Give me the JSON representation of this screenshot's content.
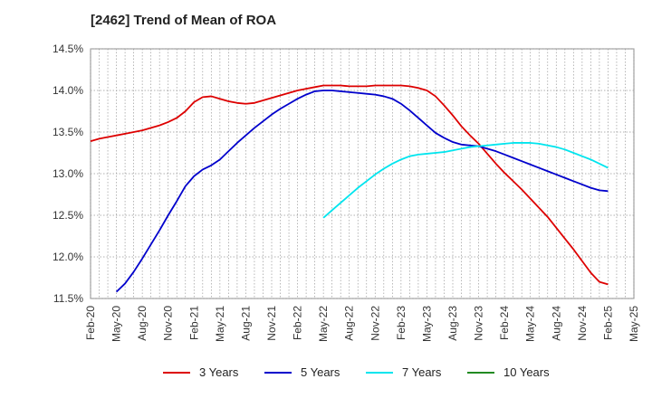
{
  "chart_data": {
    "type": "line",
    "title": "[2462]  Trend of Mean of ROA",
    "xlabel": "",
    "ylabel": "",
    "ylim": [
      11.5,
      14.5
    ],
    "yticks": [
      "11.5%",
      "12.0%",
      "12.5%",
      "13.0%",
      "13.5%",
      "14.0%",
      "14.5%"
    ],
    "xticks": [
      "Feb-20",
      "May-20",
      "Aug-20",
      "Nov-20",
      "Feb-21",
      "May-21",
      "Aug-21",
      "Nov-21",
      "Feb-22",
      "May-22",
      "Aug-22",
      "Nov-22",
      "Feb-23",
      "May-23",
      "Aug-23",
      "Nov-23",
      "Feb-24",
      "May-24",
      "Aug-24",
      "Nov-24",
      "Feb-25",
      "May-25"
    ],
    "grid": true,
    "legend_position": "bottom",
    "series": [
      {
        "name": "3 Years",
        "color": "#dd0000",
        "x": [
          "Feb-20",
          "Mar-20",
          "Apr-20",
          "May-20",
          "Jun-20",
          "Jul-20",
          "Aug-20",
          "Sep-20",
          "Oct-20",
          "Nov-20",
          "Dec-20",
          "Jan-21",
          "Feb-21",
          "Mar-21",
          "Apr-21",
          "May-21",
          "Jun-21",
          "Jul-21",
          "Aug-21",
          "Sep-21",
          "Oct-21",
          "Nov-21",
          "Dec-21",
          "Jan-22",
          "Feb-22",
          "Mar-22",
          "Apr-22",
          "May-22",
          "Jun-22",
          "Jul-22",
          "Aug-22",
          "Sep-22",
          "Oct-22",
          "Nov-22",
          "Dec-22",
          "Jan-23",
          "Feb-23",
          "Mar-23",
          "Apr-23",
          "May-23",
          "Jun-23",
          "Jul-23",
          "Aug-23",
          "Sep-23",
          "Oct-23",
          "Nov-23",
          "Dec-23",
          "Jan-24",
          "Feb-24",
          "Mar-24",
          "Apr-24",
          "May-24",
          "Jun-24",
          "Jul-24",
          "Aug-24",
          "Sep-24",
          "Oct-24",
          "Nov-24",
          "Dec-24",
          "Jan-25",
          "Feb-25"
        ],
        "values": [
          13.39,
          13.42,
          13.44,
          13.46,
          13.48,
          13.5,
          13.52,
          13.55,
          13.58,
          13.62,
          13.67,
          13.75,
          13.86,
          13.92,
          13.93,
          13.9,
          13.87,
          13.85,
          13.84,
          13.85,
          13.88,
          13.91,
          13.94,
          13.97,
          14.0,
          14.02,
          14.04,
          14.06,
          14.06,
          14.06,
          14.05,
          14.05,
          14.05,
          14.06,
          14.06,
          14.06,
          14.06,
          14.05,
          14.03,
          14.0,
          13.93,
          13.82,
          13.7,
          13.57,
          13.46,
          13.36,
          13.24,
          13.12,
          13.01,
          12.91,
          12.81,
          12.7,
          12.59,
          12.48,
          12.35,
          12.22,
          12.09,
          11.95,
          11.81,
          11.7,
          11.67
        ],
        "x_offset_note": ""
      },
      {
        "name": "5 Years",
        "color": "#0000cc",
        "x": [
          "May-20",
          "Jun-20",
          "Jul-20",
          "Aug-20",
          "Sep-20",
          "Oct-20",
          "Nov-20",
          "Dec-20",
          "Jan-21",
          "Feb-21",
          "Mar-21",
          "Apr-21",
          "May-21",
          "Jun-21",
          "Jul-21",
          "Aug-21",
          "Sep-21",
          "Oct-21",
          "Nov-21",
          "Dec-21",
          "Jan-22",
          "Feb-22",
          "Mar-22",
          "Apr-22",
          "May-22",
          "Jun-22",
          "Jul-22",
          "Aug-22",
          "Sep-22",
          "Oct-22",
          "Nov-22",
          "Dec-22",
          "Jan-23",
          "Feb-23",
          "Mar-23",
          "Apr-23",
          "May-23",
          "Jun-23",
          "Jul-23",
          "Aug-23",
          "Sep-23",
          "Oct-23",
          "Nov-23",
          "Dec-23",
          "Jan-24",
          "Feb-24",
          "Mar-24",
          "Apr-24",
          "May-24",
          "Jun-24",
          "Jul-24",
          "Aug-24",
          "Sep-24",
          "Oct-24",
          "Nov-24",
          "Dec-24",
          "Jan-25",
          "Feb-25"
        ],
        "values": [
          11.58,
          11.68,
          11.82,
          11.98,
          12.15,
          12.32,
          12.5,
          12.67,
          12.85,
          12.97,
          13.05,
          13.1,
          13.17,
          13.27,
          13.37,
          13.46,
          13.55,
          13.63,
          13.71,
          13.78,
          13.84,
          13.9,
          13.95,
          13.99,
          14.0,
          14.0,
          13.99,
          13.98,
          13.97,
          13.96,
          13.95,
          13.93,
          13.9,
          13.84,
          13.76,
          13.67,
          13.58,
          13.49,
          13.43,
          13.38,
          13.35,
          13.34,
          13.33,
          13.3,
          13.27,
          13.23,
          13.19,
          13.15,
          13.11,
          13.07,
          13.03,
          12.99,
          12.95,
          12.91,
          12.87,
          12.83,
          12.8,
          12.79
        ],
        "x_offset_note": ""
      },
      {
        "name": "7 Years",
        "color": "#00e5ee",
        "x": [
          "May-22",
          "Jun-22",
          "Jul-22",
          "Aug-22",
          "Sep-22",
          "Oct-22",
          "Nov-22",
          "Dec-22",
          "Jan-23",
          "Feb-23",
          "Mar-23",
          "Apr-23",
          "May-23",
          "Jun-23",
          "Jul-23",
          "Aug-23",
          "Sep-23",
          "Oct-23",
          "Nov-23",
          "Dec-23",
          "Jan-24",
          "Feb-24",
          "Mar-24",
          "Apr-24",
          "May-24",
          "Jun-24",
          "Jul-24",
          "Aug-24",
          "Sep-24",
          "Oct-24",
          "Nov-24",
          "Dec-24",
          "Jan-25",
          "Feb-25"
        ],
        "values": [
          12.47,
          12.56,
          12.65,
          12.74,
          12.83,
          12.91,
          12.99,
          13.06,
          13.12,
          13.17,
          13.21,
          13.23,
          13.24,
          13.25,
          13.26,
          13.28,
          13.3,
          13.32,
          13.33,
          13.34,
          13.35,
          13.36,
          13.37,
          13.37,
          13.37,
          13.36,
          13.34,
          13.32,
          13.29,
          13.25,
          13.21,
          13.17,
          13.12,
          13.07
        ],
        "x_offset_note": ""
      },
      {
        "name": "10 Years",
        "color": "#228b22",
        "x": [],
        "values": []
      }
    ]
  }
}
